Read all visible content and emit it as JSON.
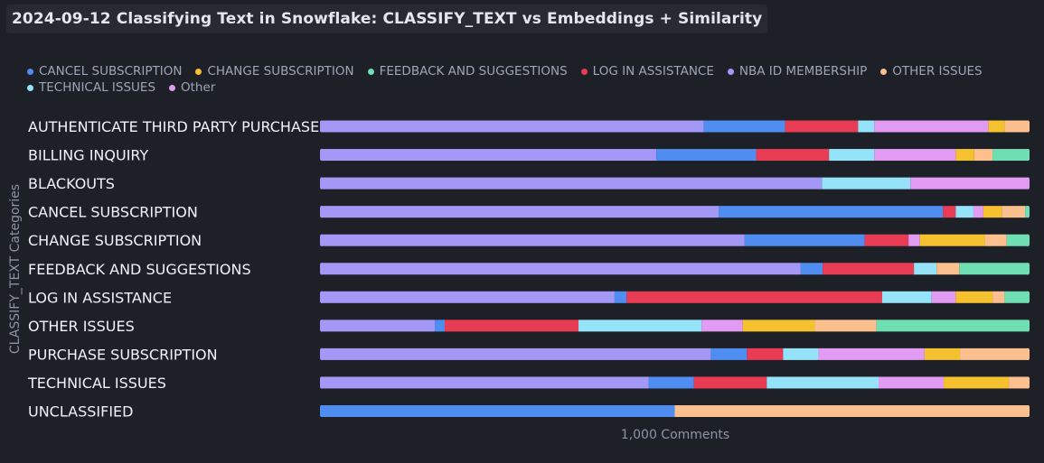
{
  "header": {
    "title": "2024-09-12 Classifying Text in Snowflake: CLASSIFY_TEXT vs Embeddings + Similarity"
  },
  "legend": {
    "items": [
      {
        "label": "CANCEL SUBSCRIPTION",
        "color": "#4f8ef0"
      },
      {
        "label": "CHANGE SUBSCRIPTION",
        "color": "#f6c12e"
      },
      {
        "label": "FEEDBACK AND SUGGESTIONS",
        "color": "#6fdfb3"
      },
      {
        "label": "LOG IN ASSISTANCE",
        "color": "#e83c55"
      },
      {
        "label": "NBA ID MEMBERSHIP",
        "color": "#a398f6"
      },
      {
        "label": "OTHER ISSUES",
        "color": "#fbc08e"
      },
      {
        "label": "TECHNICAL ISSUES",
        "color": "#95e3f8"
      },
      {
        "label": "Other",
        "color": "#e29bf2"
      }
    ]
  },
  "chart_data": {
    "type": "bar",
    "orientation": "horizontal",
    "stacked": "percent",
    "title": "2024-09-12 Classifying Text in Snowflake: CLASSIFY_TEXT vs Embeddings + Similarity",
    "xlabel": "1,000 Comments",
    "ylabel": "CLASSIFY_TEXT Categories",
    "legend_position": "top",
    "grid": false,
    "xlim": [
      0,
      100
    ],
    "categories": [
      "AUTHENTICATE THIRD PARTY PURCHASE",
      "BILLING INQUIRY",
      "BLACKOUTS",
      "CANCEL SUBSCRIPTION",
      "CHANGE SUBSCRIPTION",
      "FEEDBACK AND SUGGESTIONS",
      "LOG IN ASSISTANCE",
      "OTHER ISSUES",
      "PURCHASE SUBSCRIPTION",
      "TECHNICAL ISSUES",
      "UNCLASSIFIED"
    ],
    "rows": [
      [
        {
          "series": "NBA ID MEMBERSHIP",
          "value": 54.1
        },
        {
          "series": "CANCEL SUBSCRIPTION",
          "value": 11.5
        },
        {
          "series": "LOG IN ASSISTANCE",
          "value": 10.3
        },
        {
          "series": "TECHNICAL ISSUES",
          "value": 2.3
        },
        {
          "series": "Other",
          "value": 16.1
        },
        {
          "series": "CHANGE SUBSCRIPTION",
          "value": 2.3
        },
        {
          "series": "OTHER ISSUES",
          "value": 3.4
        }
      ],
      [
        {
          "series": "NBA ID MEMBERSHIP",
          "value": 47.4
        },
        {
          "series": "CANCEL SUBSCRIPTION",
          "value": 14.1
        },
        {
          "series": "LOG IN ASSISTANCE",
          "value": 10.3
        },
        {
          "series": "TECHNICAL ISSUES",
          "value": 6.4
        },
        {
          "series": "Other",
          "value": 11.5
        },
        {
          "series": "CHANGE SUBSCRIPTION",
          "value": 2.6
        },
        {
          "series": "OTHER ISSUES",
          "value": 2.6
        },
        {
          "series": "FEEDBACK AND SUGGESTIONS",
          "value": 5.1
        }
      ],
      [
        {
          "series": "NBA ID MEMBERSHIP",
          "value": 70.8
        },
        {
          "series": "TECHNICAL ISSUES",
          "value": 12.5
        },
        {
          "series": "Other",
          "value": 16.7
        }
      ],
      [
        {
          "series": "NBA ID MEMBERSHIP",
          "value": 56.2
        },
        {
          "series": "CANCEL SUBSCRIPTION",
          "value": 31.7
        },
        {
          "series": "LOG IN ASSISTANCE",
          "value": 1.8
        },
        {
          "series": "TECHNICAL ISSUES",
          "value": 2.5
        },
        {
          "series": "Other",
          "value": 1.4
        },
        {
          "series": "CHANGE SUBSCRIPTION",
          "value": 2.6
        },
        {
          "series": "OTHER ISSUES",
          "value": 3.3
        },
        {
          "series": "FEEDBACK AND SUGGESTIONS",
          "value": 0.5
        }
      ],
      [
        {
          "series": "NBA ID MEMBERSHIP",
          "value": 60.0
        },
        {
          "series": "CANCEL SUBSCRIPTION",
          "value": 17.0
        },
        {
          "series": "LOG IN ASSISTANCE",
          "value": 6.2
        },
        {
          "series": "Other",
          "value": 1.6
        },
        {
          "series": "CHANGE SUBSCRIPTION",
          "value": 9.2
        },
        {
          "series": "OTHER ISSUES",
          "value": 3.1
        },
        {
          "series": "FEEDBACK AND SUGGESTIONS",
          "value": 3.1
        }
      ],
      [
        {
          "series": "NBA ID MEMBERSHIP",
          "value": 67.8
        },
        {
          "series": "CANCEL SUBSCRIPTION",
          "value": 3.1
        },
        {
          "series": "LOG IN ASSISTANCE",
          "value": 12.9
        },
        {
          "series": "TECHNICAL ISSUES",
          "value": 3.2
        },
        {
          "series": "OTHER ISSUES",
          "value": 3.2
        },
        {
          "series": "FEEDBACK AND SUGGESTIONS",
          "value": 9.8
        }
      ],
      [
        {
          "series": "NBA ID MEMBERSHIP",
          "value": 41.5
        },
        {
          "series": "CANCEL SUBSCRIPTION",
          "value": 1.7
        },
        {
          "series": "LOG IN ASSISTANCE",
          "value": 36.1
        },
        {
          "series": "TECHNICAL ISSUES",
          "value": 7.0
        },
        {
          "series": "Other",
          "value": 3.4
        },
        {
          "series": "CHANGE SUBSCRIPTION",
          "value": 5.2
        },
        {
          "series": "OTHER ISSUES",
          "value": 1.7
        },
        {
          "series": "FEEDBACK AND SUGGESTIONS",
          "value": 3.4
        }
      ],
      [
        {
          "series": "NBA ID MEMBERSHIP",
          "value": 16.1
        },
        {
          "series": "CANCEL SUBSCRIPTION",
          "value": 1.4
        },
        {
          "series": "LOG IN ASSISTANCE",
          "value": 18.9
        },
        {
          "series": "TECHNICAL ISSUES",
          "value": 17.4
        },
        {
          "series": "Other",
          "value": 5.8
        },
        {
          "series": "CHANGE SUBSCRIPTION",
          "value": 10.2
        },
        {
          "series": "OTHER ISSUES",
          "value": 8.7
        },
        {
          "series": "FEEDBACK AND SUGGESTIONS",
          "value": 21.5
        }
      ],
      [
        {
          "series": "NBA ID MEMBERSHIP",
          "value": 55.1
        },
        {
          "series": "CANCEL SUBSCRIPTION",
          "value": 5.1
        },
        {
          "series": "LOG IN ASSISTANCE",
          "value": 5.1
        },
        {
          "series": "TECHNICAL ISSUES",
          "value": 5.0
        },
        {
          "series": "Other",
          "value": 15.0
        },
        {
          "series": "CHANGE SUBSCRIPTION",
          "value": 5.0
        },
        {
          "series": "OTHER ISSUES",
          "value": 9.7
        }
      ],
      [
        {
          "series": "NBA ID MEMBERSHIP",
          "value": 46.3
        },
        {
          "series": "CANCEL SUBSCRIPTION",
          "value": 6.4
        },
        {
          "series": "LOG IN ASSISTANCE",
          "value": 10.3
        },
        {
          "series": "TECHNICAL ISSUES",
          "value": 15.8
        },
        {
          "series": "Other",
          "value": 9.2
        },
        {
          "series": "CHANGE SUBSCRIPTION",
          "value": 9.2
        },
        {
          "series": "OTHER ISSUES",
          "value": 2.8
        }
      ],
      [
        {
          "series": "CANCEL SUBSCRIPTION",
          "value": 50.0
        },
        {
          "series": "OTHER ISSUES",
          "value": 50.0
        }
      ]
    ]
  }
}
